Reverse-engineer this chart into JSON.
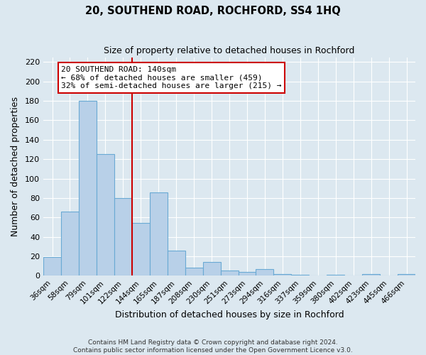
{
  "title": "20, SOUTHEND ROAD, ROCHFORD, SS4 1HQ",
  "subtitle": "Size of property relative to detached houses in Rochford",
  "xlabel": "Distribution of detached houses by size in Rochford",
  "ylabel": "Number of detached properties",
  "footer_line1": "Contains HM Land Registry data © Crown copyright and database right 2024.",
  "footer_line2": "Contains public sector information licensed under the Open Government Licence v3.0.",
  "bin_labels": [
    "36sqm",
    "58sqm",
    "79sqm",
    "101sqm",
    "122sqm",
    "144sqm",
    "165sqm",
    "187sqm",
    "208sqm",
    "230sqm",
    "251sqm",
    "273sqm",
    "294sqm",
    "316sqm",
    "337sqm",
    "359sqm",
    "380sqm",
    "402sqm",
    "423sqm",
    "445sqm",
    "466sqm"
  ],
  "bar_values": [
    19,
    66,
    180,
    125,
    80,
    54,
    86,
    26,
    8,
    14,
    5,
    4,
    7,
    2,
    1,
    0,
    1,
    0,
    2,
    0,
    2
  ],
  "bar_color": "#b8d0e8",
  "bar_edge_color": "#6aaad4",
  "background_color": "#dce8f0",
  "grid_color": "#ffffff",
  "vline_color": "#cc0000",
  "annotation_title": "20 SOUTHEND ROAD: 140sqm",
  "annotation_line1": "← 68% of detached houses are smaller (459)",
  "annotation_line2": "32% of semi-detached houses are larger (215) →",
  "annotation_box_color": "#ffffff",
  "annotation_border_color": "#cc0000",
  "ylim": [
    0,
    225
  ],
  "yticks": [
    0,
    20,
    40,
    60,
    80,
    100,
    120,
    140,
    160,
    180,
    200,
    220
  ]
}
